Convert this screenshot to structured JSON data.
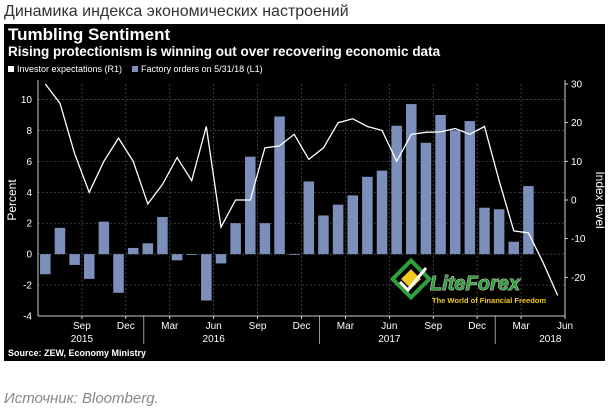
{
  "page": {
    "heading": "Динамика индекса экономических настроений",
    "footnote": "Источник: Bloomberg."
  },
  "watermark": {
    "brand": "LiteForex",
    "tagline": "The World of Financial Freedom"
  },
  "colors": {
    "panel": "#000000",
    "bar": "#7b8fba",
    "line": "#ffffff",
    "grid": "#555555",
    "text": "#ffffff"
  },
  "chart_data": {
    "type": "bar",
    "title": "Tumbling Sentiment",
    "subtitle": "Rising protectionism is winning out over recovering economic data",
    "source": "Source: ZEW, Economy Ministry",
    "ylabel": "Percent",
    "y2label": "Index level",
    "ylim": [
      -4,
      11
    ],
    "y2lim": [
      -30,
      30
    ],
    "yticks": [
      -4,
      -2,
      0,
      2,
      4,
      6,
      8,
      10
    ],
    "y2ticks": [
      -20,
      -10,
      0,
      10,
      20,
      30
    ],
    "grid": true,
    "legend_position": "top-left",
    "month_ticks": [
      {
        "label": "Sep",
        "index": 3
      },
      {
        "label": "Dec",
        "index": 6
      },
      {
        "label": "Mar",
        "index": 9
      },
      {
        "label": "Jun",
        "index": 12
      },
      {
        "label": "Sep",
        "index": 15
      },
      {
        "label": "Dec",
        "index": 18
      },
      {
        "label": "Mar",
        "index": 21
      },
      {
        "label": "Jun",
        "index": 24
      },
      {
        "label": "Sep",
        "index": 27
      },
      {
        "label": "Dec",
        "index": 30
      },
      {
        "label": "Mar",
        "index": 33
      },
      {
        "label": "Jun",
        "index": 36
      }
    ],
    "year_labels": [
      {
        "label": "2015",
        "index": 3
      },
      {
        "label": "2016",
        "index": 12
      },
      {
        "label": "2017",
        "index": 24
      },
      {
        "label": "2018",
        "index": 35
      }
    ],
    "series": [
      {
        "name": "Factory orders on 5/31/18 (L1)",
        "kind": "bar",
        "axis": "left",
        "values": [
          -1.3,
          1.7,
          -0.7,
          -1.6,
          2.1,
          -2.5,
          0.4,
          0.7,
          2.4,
          -0.4,
          0.0,
          -3.0,
          -0.6,
          2.0,
          6.3,
          2.0,
          8.9,
          0.0,
          4.7,
          2.5,
          3.2,
          3.8,
          5.0,
          5.4,
          8.3,
          9.7,
          7.2,
          9.0,
          8.0,
          8.6,
          3.0,
          2.9,
          0.8,
          4.4,
          null,
          null
        ]
      },
      {
        "name": "Investor expectations (R1)",
        "kind": "line",
        "axis": "right",
        "values": [
          30,
          25,
          12,
          2,
          10,
          16,
          10,
          -1,
          4,
          11,
          5,
          19,
          -7,
          0,
          0,
          13.5,
          14,
          17,
          10.5,
          13.5,
          20,
          21,
          19,
          18,
          10,
          17,
          17.5,
          17.6,
          18.5,
          17,
          19,
          5,
          -8,
          -8.5,
          -16.1,
          -24.7
        ]
      }
    ]
  }
}
